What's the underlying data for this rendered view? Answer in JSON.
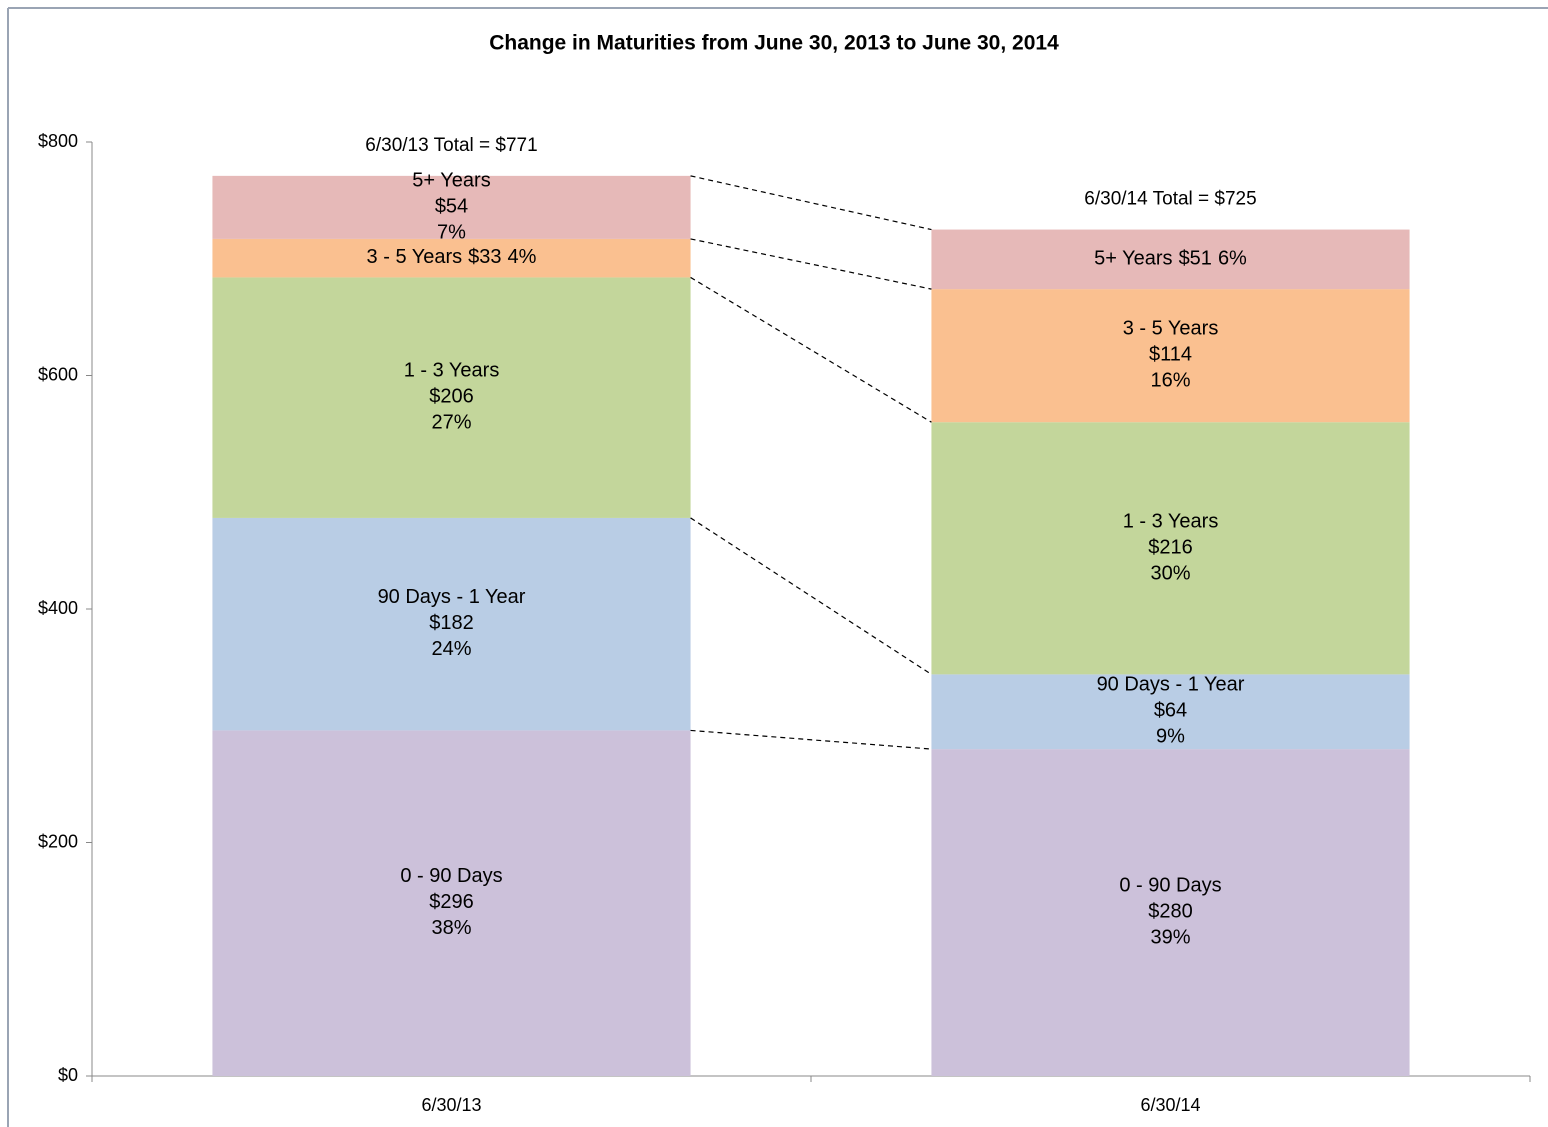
{
  "chart_data": {
    "type": "stacked_bar",
    "title": "Change in Maturities from June 30, 2013 to June 30, 2014",
    "categories": [
      "6/30/13",
      "6/30/14"
    ],
    "total_labels": [
      "6/30/13 Total = $771",
      "6/30/14 Total = $725"
    ],
    "series": [
      {
        "name": "0 - 90 Days",
        "color": "#ccc1da",
        "values": [
          296,
          280
        ],
        "value_labels": [
          "$296",
          "$280"
        ],
        "share_labels": [
          "38%",
          "39%"
        ]
      },
      {
        "name": "90 Days - 1 Year",
        "color": "#b9cde5",
        "values": [
          182,
          64
        ],
        "value_labels": [
          "$182",
          "$64"
        ],
        "share_labels": [
          "24%",
          "9%"
        ]
      },
      {
        "name": "1 - 3 Years",
        "color": "#c3d69b",
        "values": [
          206,
          216
        ],
        "value_labels": [
          "$206",
          "$216"
        ],
        "share_labels": [
          "27%",
          "30%"
        ]
      },
      {
        "name": "3 - 5 Years",
        "color": "#fac090",
        "values": [
          33,
          114
        ],
        "value_labels": [
          "$33",
          "$114"
        ],
        "share_labels": [
          "4%",
          "16%"
        ]
      },
      {
        "name": "5+ Years",
        "color": "#e6b9b8",
        "values": [
          54,
          51
        ],
        "value_labels": [
          "$54",
          "$51"
        ],
        "share_labels": [
          "7%",
          "6%"
        ]
      }
    ],
    "ylim": [
      0,
      800
    ],
    "yticks": [
      {
        "value": 0,
        "label": "$0"
      },
      {
        "value": 200,
        "label": "$200"
      },
      {
        "value": 400,
        "label": "$400"
      },
      {
        "value": 600,
        "label": "$600"
      },
      {
        "value": 800,
        "label": "$800"
      }
    ],
    "grid": false
  }
}
